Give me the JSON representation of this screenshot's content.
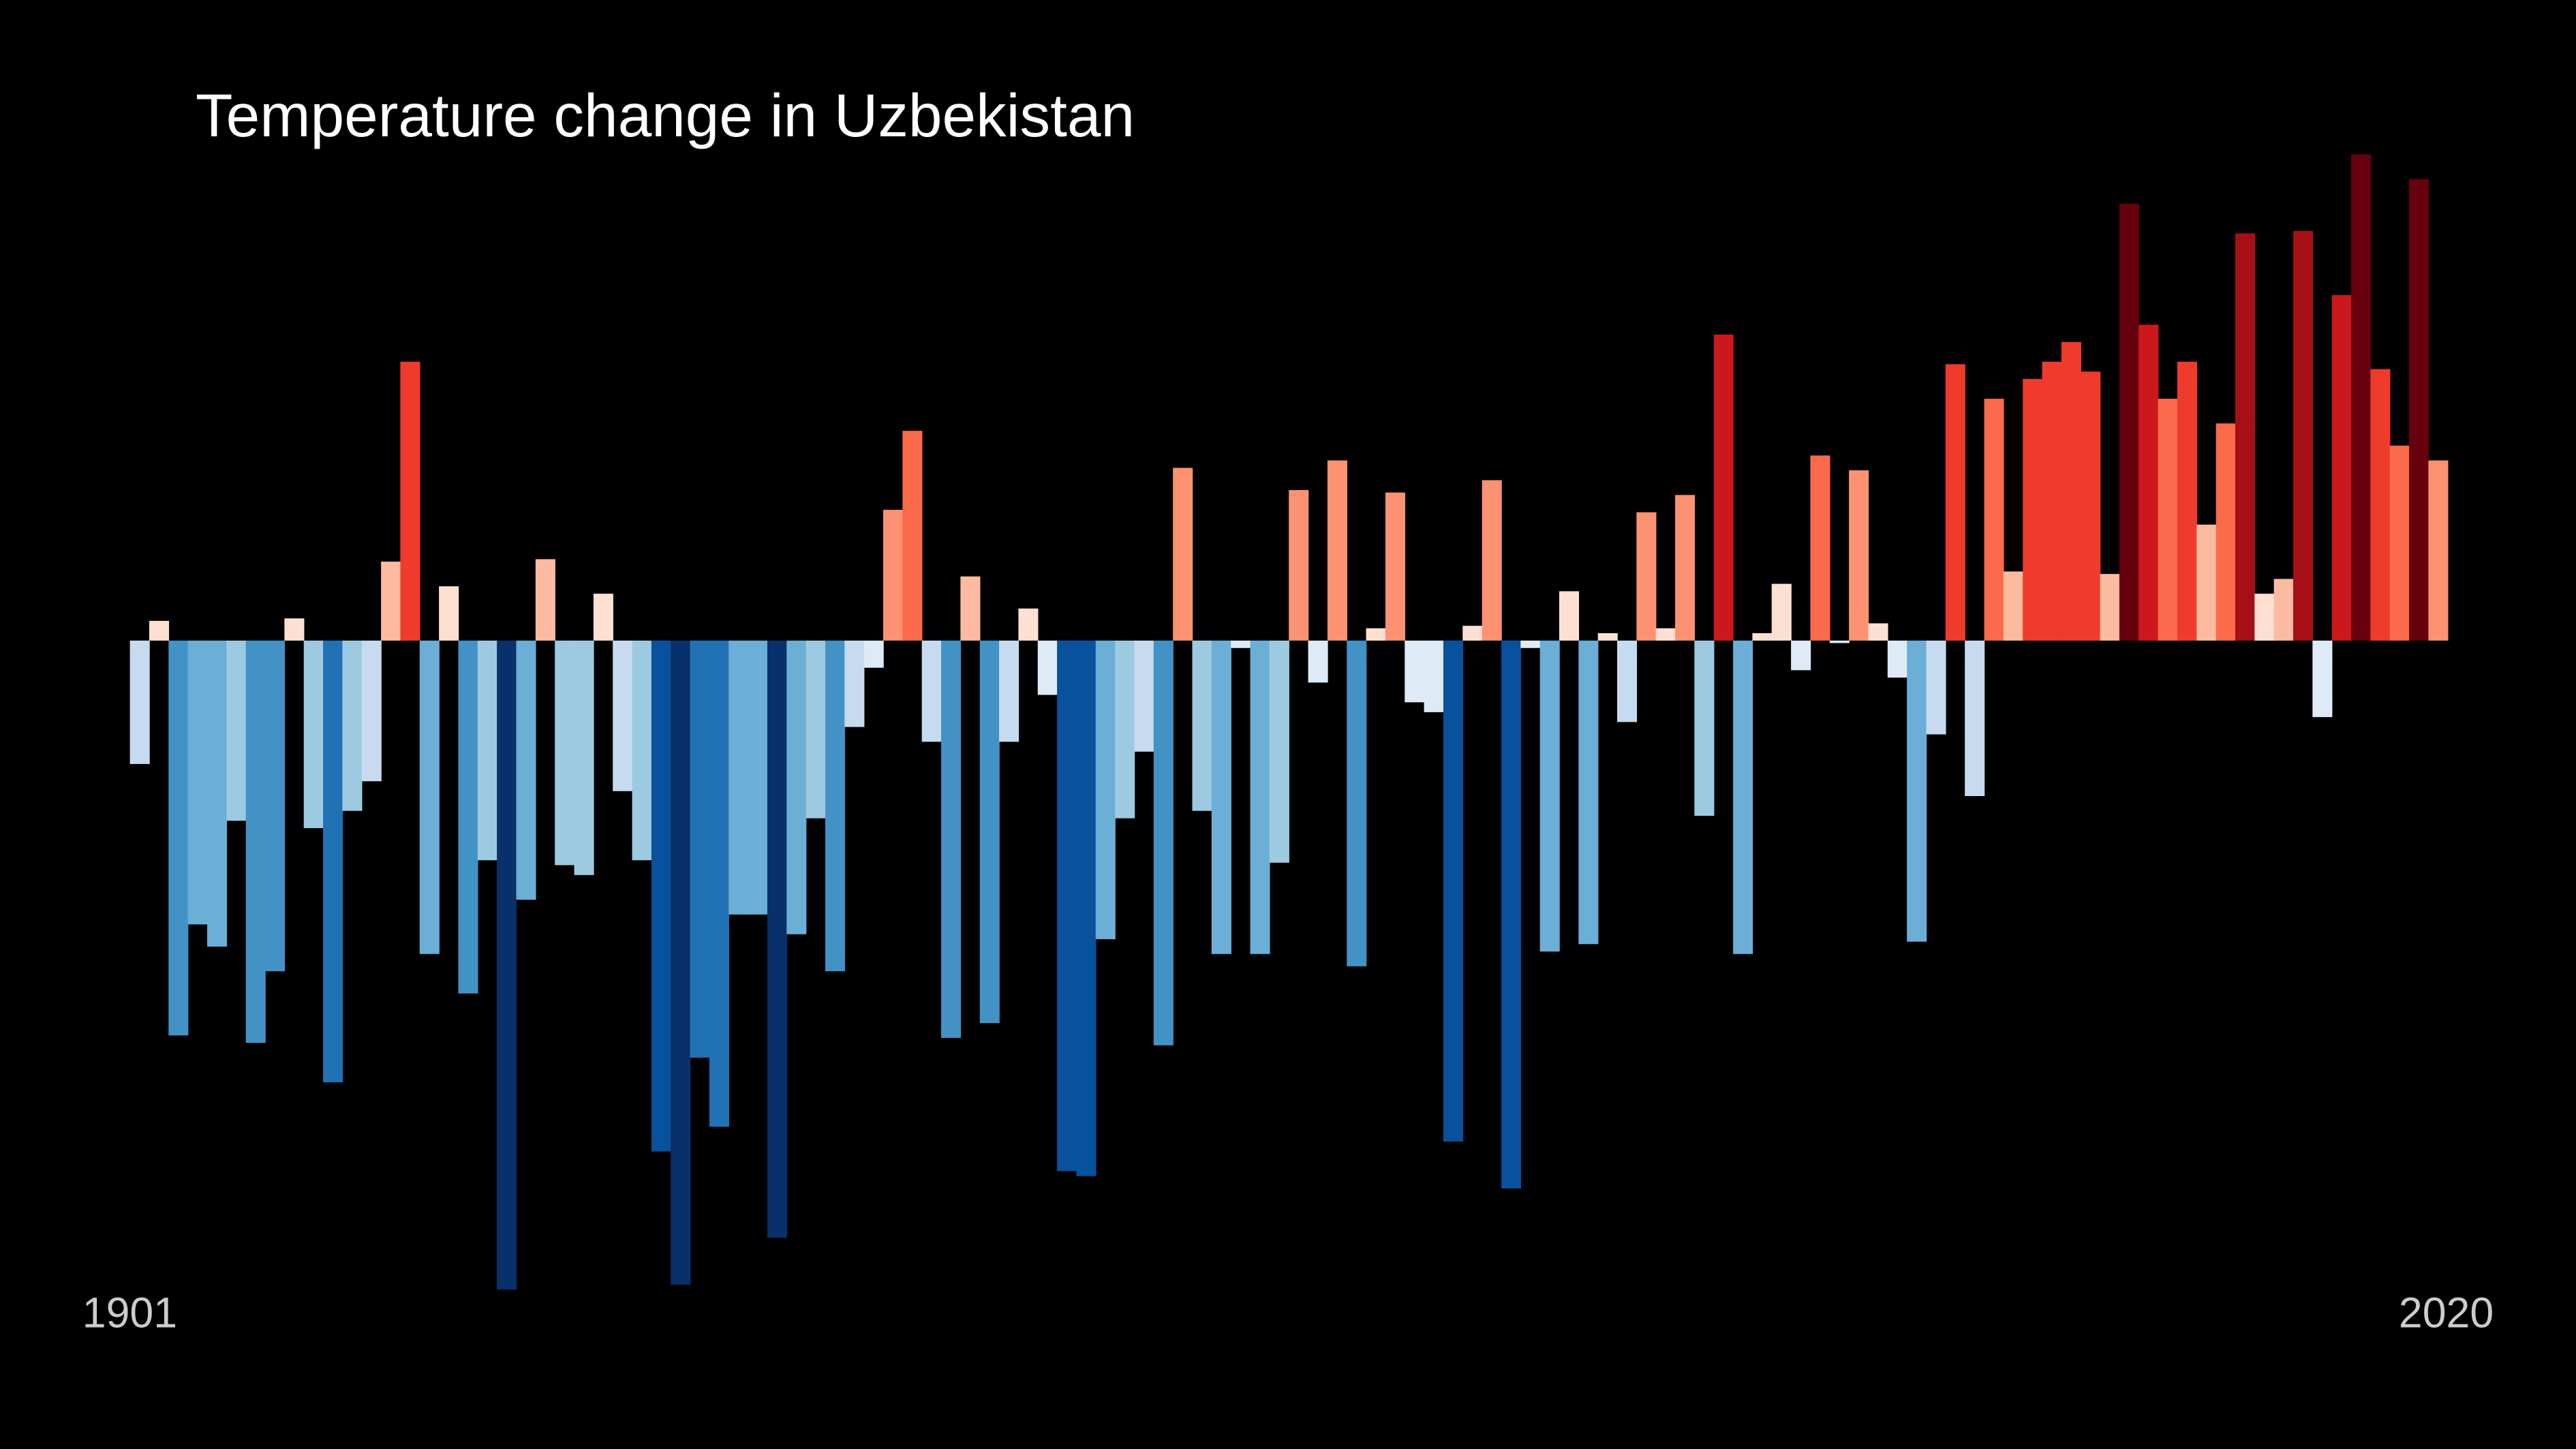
{
  "chart_data": {
    "type": "bar",
    "title": "Temperature change in Uzbekistan",
    "categories": [
      "1901",
      null,
      null,
      null,
      null,
      null,
      null,
      null,
      null,
      null,
      null,
      null,
      null,
      null,
      null,
      null,
      null,
      null,
      null,
      null,
      null,
      null,
      null,
      null,
      null,
      null,
      null,
      null,
      null,
      null,
      null,
      null,
      null,
      null,
      null,
      null,
      null,
      null,
      null,
      null,
      null,
      null,
      null,
      null,
      null,
      null,
      null,
      null,
      null,
      null,
      null,
      null,
      null,
      null,
      null,
      null,
      null,
      null,
      null,
      null,
      null,
      null,
      null,
      null,
      null,
      null,
      null,
      null,
      null,
      null,
      null,
      null,
      null,
      null,
      null,
      null,
      null,
      null,
      null,
      null,
      null,
      null,
      null,
      null,
      null,
      null,
      null,
      null,
      null,
      null,
      null,
      null,
      null,
      null,
      null,
      null,
      null,
      null,
      null,
      null,
      null,
      null,
      null,
      null,
      null,
      null,
      null,
      null,
      null,
      null,
      null,
      null,
      null,
      null,
      null,
      null,
      null,
      null,
      null,
      "2020"
    ],
    "values": [
      -0.5,
      0.08,
      -1.6,
      -1.15,
      -1.24,
      -0.73,
      -1.63,
      -1.34,
      0.09,
      -0.76,
      -1.79,
      -0.69,
      -0.57,
      0.32,
      1.13,
      -1.27,
      0.22,
      -1.43,
      -0.89,
      -2.63,
      -1.05,
      0.33,
      -0.91,
      -0.95,
      0.19,
      -0.61,
      -0.89,
      -2.07,
      -2.61,
      -1.69,
      -1.97,
      -1.11,
      -1.11,
      -2.42,
      -1.19,
      -0.72,
      -1.34,
      -0.35,
      -0.11,
      0.53,
      0.85,
      -0.41,
      -1.61,
      0.26,
      -1.55,
      -0.41,
      0.13,
      -0.22,
      -2.15,
      -2.17,
      -1.21,
      -0.72,
      -0.45,
      -1.64,
      0.7,
      -0.69,
      -1.27,
      -0.03,
      -1.27,
      -0.9,
      0.61,
      -0.17,
      0.73,
      -1.32,
      0.05,
      0.6,
      -0.25,
      -0.29,
      -2.03,
      0.06,
      0.65,
      -2.22,
      -0.03,
      -1.26,
      0.2,
      -1.23,
      0.03,
      -0.33,
      0.52,
      0.05,
      0.59,
      -0.71,
      1.24,
      -1.27,
      0.03,
      0.23,
      -0.12,
      0.75,
      -0.01,
      0.69,
      0.07,
      -0.15,
      -1.22,
      -0.38,
      1.12,
      -0.63,
      0.98,
      0.28,
      1.06,
      1.13,
      1.21,
      1.09,
      0.27,
      1.77,
      1.28,
      0.98,
      1.13,
      0.47,
      0.88,
      1.65,
      0.19,
      0.25,
      1.66,
      -0.31,
      1.4,
      1.97,
      1.1,
      0.79,
      1.87,
      0.73
    ],
    "colormap": {
      "negative": [
        "#deebf7",
        "#c6dbef",
        "#9ecae1",
        "#6baed6",
        "#4292c6",
        "#2171b5",
        "#08519c",
        "#08306b"
      ],
      "positive": [
        "#fee0d2",
        "#fcbba1",
        "#fc9272",
        "#fb6a4a",
        "#ef3b2c",
        "#cb181d",
        "#a50f15",
        "#67000d"
      ]
    },
    "background": "#000000"
  }
}
